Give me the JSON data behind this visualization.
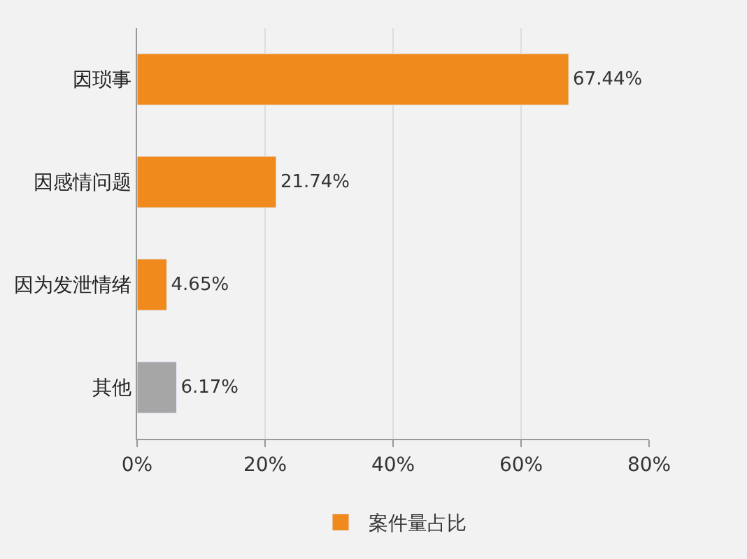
{
  "chart_data": {
    "type": "bar",
    "orientation": "horizontal",
    "categories": [
      "因琐事",
      "因感情问题",
      "因为发泄情绪",
      "其他"
    ],
    "series": [
      {
        "name": "案件量占比",
        "color": "#f08a1c",
        "colors": [
          "#f08a1c",
          "#f08a1c",
          "#f08a1c",
          "#a6a6a6"
        ],
        "values": [
          67.44,
          21.74,
          4.65,
          6.17
        ],
        "value_labels": [
          "67.44%",
          "21.74%",
          "4.65%",
          "6.17%"
        ]
      }
    ],
    "xlim": [
      0,
      80
    ],
    "xticks": [
      {
        "value": 0,
        "label": "0%"
      },
      {
        "value": 20,
        "label": "20%"
      },
      {
        "value": 40,
        "label": "40%"
      },
      {
        "value": 60,
        "label": "60%"
      },
      {
        "value": 80,
        "label": "80%"
      }
    ],
    "grid": "x",
    "legend": "bottom"
  }
}
